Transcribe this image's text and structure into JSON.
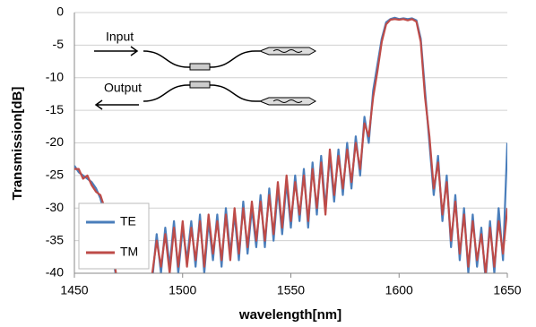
{
  "chart_data": {
    "type": "line",
    "xlabel": "wavelength[nm]",
    "ylabel": "Transmission[dB]",
    "annotations": [
      "Input",
      "Output"
    ],
    "xlim": [
      1450,
      1650
    ],
    "xticks": [
      1450,
      1500,
      1550,
      1600,
      1650
    ],
    "ylim": [
      -40,
      0
    ],
    "yticks": [
      0,
      -5,
      -10,
      -15,
      -20,
      -25,
      -30,
      -35,
      -40
    ],
    "grid": true,
    "legend": "lower left",
    "x": [
      1450,
      1452,
      1454,
      1456,
      1458,
      1460,
      1462,
      1464,
      1466,
      1468,
      1470,
      1472,
      1474,
      1476,
      1478,
      1480,
      1482,
      1484,
      1486,
      1488,
      1490,
      1492,
      1494,
      1496,
      1498,
      1500,
      1502,
      1504,
      1506,
      1508,
      1510,
      1512,
      1514,
      1516,
      1518,
      1520,
      1522,
      1524,
      1526,
      1528,
      1530,
      1532,
      1534,
      1536,
      1538,
      1540,
      1542,
      1544,
      1546,
      1548,
      1550,
      1552,
      1554,
      1556,
      1558,
      1560,
      1562,
      1564,
      1566,
      1568,
      1570,
      1572,
      1574,
      1576,
      1578,
      1580,
      1582,
      1584,
      1586,
      1588,
      1590,
      1592,
      1594,
      1596,
      1598,
      1600,
      1602,
      1604,
      1606,
      1608,
      1610,
      1612,
      1614,
      1616,
      1618,
      1620,
      1622,
      1624,
      1626,
      1628,
      1630,
      1632,
      1634,
      1636,
      1638,
      1640,
      1642,
      1644,
      1646,
      1648,
      1650
    ],
    "series": [
      {
        "name": "TE",
        "color": "#4a7ebb",
        "values": [
          -23.5,
          -24.5,
          -25,
          -25.5,
          -26,
          -27,
          -28.5,
          -31,
          -34,
          -38,
          -42,
          -42,
          -42,
          -42,
          -42,
          -42,
          -42,
          -42,
          -41,
          -34,
          -40,
          -33,
          -39,
          -32,
          -40,
          -33,
          -38,
          -32,
          -39,
          -31,
          -40,
          -32,
          -38,
          -31,
          -39,
          -30,
          -37,
          -31,
          -38,
          -29,
          -37,
          -30,
          -36,
          -28,
          -36,
          -27,
          -35,
          -27,
          -34,
          -26,
          -33,
          -25,
          -32,
          -24,
          -33,
          -23,
          -31,
          -22,
          -30,
          -22,
          -29,
          -21,
          -28,
          -20,
          -27,
          -19,
          -25,
          -16,
          -20,
          -12,
          -8,
          -4,
          -1.5,
          -1,
          -0.8,
          -1,
          -0.9,
          -1,
          -0.9,
          -1.2,
          -4,
          -12,
          -20,
          -28,
          -22,
          -32,
          -25,
          -36,
          -28,
          -38,
          -30,
          -40,
          -31,
          -39,
          -33,
          -41,
          -32,
          -40,
          -30,
          -38,
          -20
        ]
      },
      {
        "name": "TM",
        "color": "#be4b48",
        "values": [
          -24,
          -24,
          -25.5,
          -25,
          -26.5,
          -27.5,
          -28,
          -30,
          -33,
          -37,
          -42,
          -42,
          -42,
          -42,
          -42,
          -42,
          -42,
          -42,
          -40,
          -35,
          -39,
          -34,
          -40,
          -33,
          -39,
          -32,
          -39,
          -33,
          -38,
          -32,
          -39,
          -31,
          -37,
          -32,
          -38,
          -31,
          -38,
          -30,
          -37,
          -30,
          -36,
          -29,
          -35,
          -29,
          -35,
          -28,
          -34,
          -26,
          -33,
          -25,
          -32,
          -26,
          -31,
          -25,
          -32,
          -24,
          -30,
          -23,
          -31,
          -21,
          -28,
          -22,
          -27,
          -21,
          -26,
          -20,
          -24,
          -17,
          -19,
          -13,
          -9,
          -4.5,
          -1.8,
          -1.1,
          -1,
          -1.1,
          -1,
          -1.2,
          -1,
          -1.4,
          -4.5,
          -13,
          -19,
          -27,
          -23,
          -31,
          -26,
          -35,
          -29,
          -37,
          -31,
          -39,
          -32,
          -38,
          -34,
          -40,
          -33,
          -39,
          -32,
          -37,
          -30
        ]
      }
    ]
  }
}
